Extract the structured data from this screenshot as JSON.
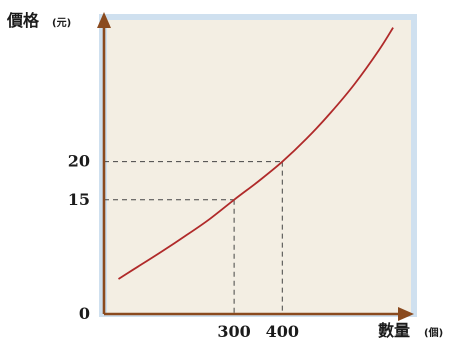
{
  "colors": {
    "plot_bg": "#f3eee3",
    "frame": "#cfe0ef",
    "axis": "#8a4a1e",
    "curve": "#b02a2a",
    "guide": "#444444"
  },
  "chart_data": {
    "type": "line",
    "title": "",
    "xlabel": "數量",
    "xunit": "(個)",
    "ylabel": "價格",
    "yunit": "(元)",
    "grid": false,
    "legend": "none",
    "xticks": [
      {
        "value": 300,
        "label": "300"
      },
      {
        "value": 400,
        "label": "400"
      }
    ],
    "yticks": [
      {
        "value": 0,
        "label": "0"
      },
      {
        "value": 15,
        "label": "15"
      },
      {
        "value": 20,
        "label": "20"
      }
    ],
    "xlim": [
      30,
      665
    ],
    "ylim": [
      0,
      38.6
    ],
    "series": [
      {
        "x": [
          60,
          100,
          150,
          200,
          250,
          300,
          350,
          400,
          450,
          500,
          550,
          600,
          630
        ],
        "y": [
          4.6,
          6.2,
          8.2,
          10.3,
          12.5,
          15.0,
          17.4,
          20.0,
          23.0,
          26.4,
          30.2,
          34.6,
          37.6
        ]
      }
    ],
    "guides": [
      {
        "x": 300,
        "y": 15
      },
      {
        "x": 400,
        "y": 20
      }
    ]
  }
}
